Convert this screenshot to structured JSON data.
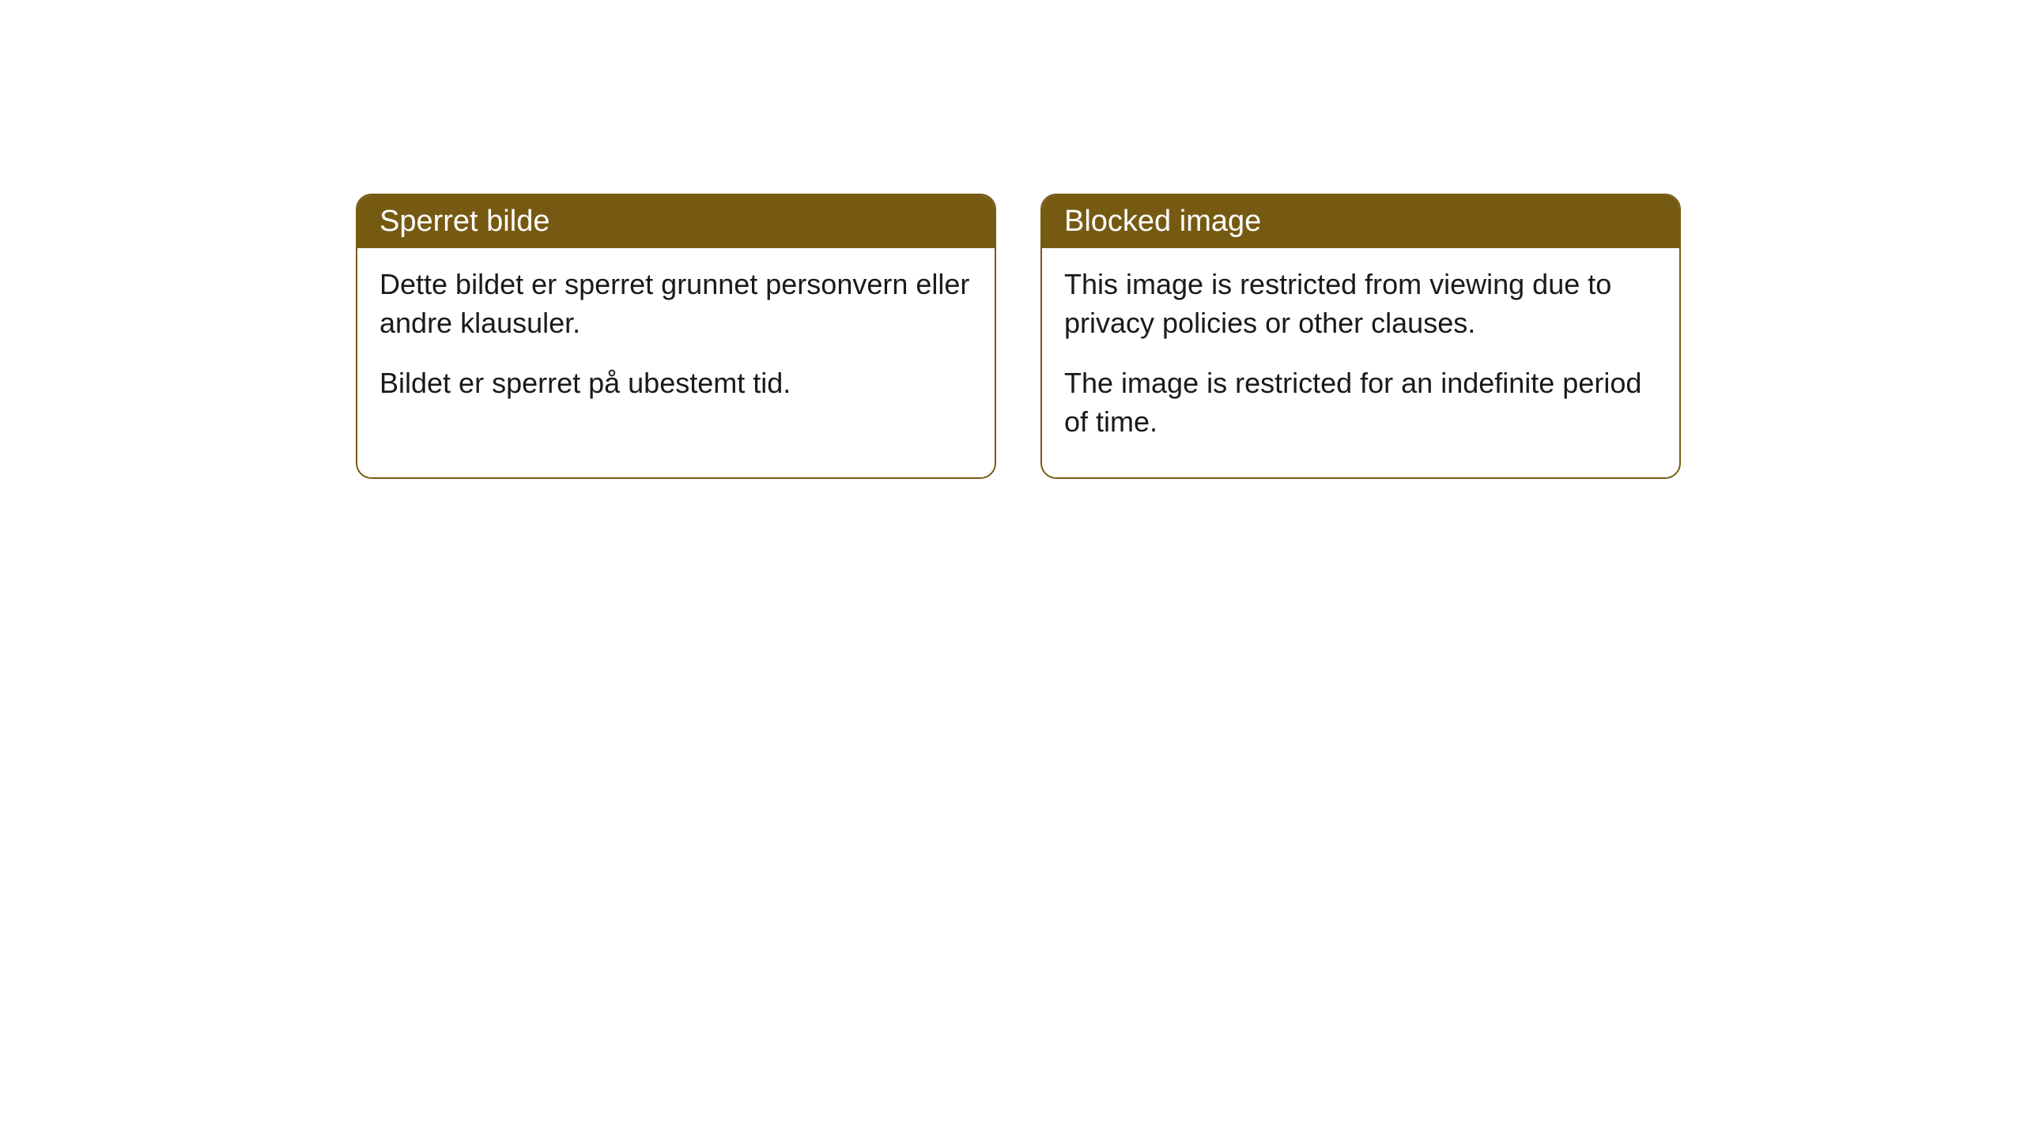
{
  "cards": [
    {
      "header": "Sperret bilde",
      "para1": "Dette bildet er sperret grunnet personvern eller andre klausuler.",
      "para2": "Bildet er sperret på ubestemt tid."
    },
    {
      "header": "Blocked image",
      "para1": "This image is restricted from viewing due to privacy policies or other clauses.",
      "para2": "The image is restricted for an indefinite period of time."
    }
  ],
  "style": {
    "header_background_color": "#775a12",
    "header_text_color": "#ffffff",
    "border_color": "#775a12",
    "body_text_color": "#1a1a1a",
    "page_background_color": "#ffffff",
    "border_radius": 20,
    "header_fontsize": 38,
    "body_fontsize": 36
  }
}
